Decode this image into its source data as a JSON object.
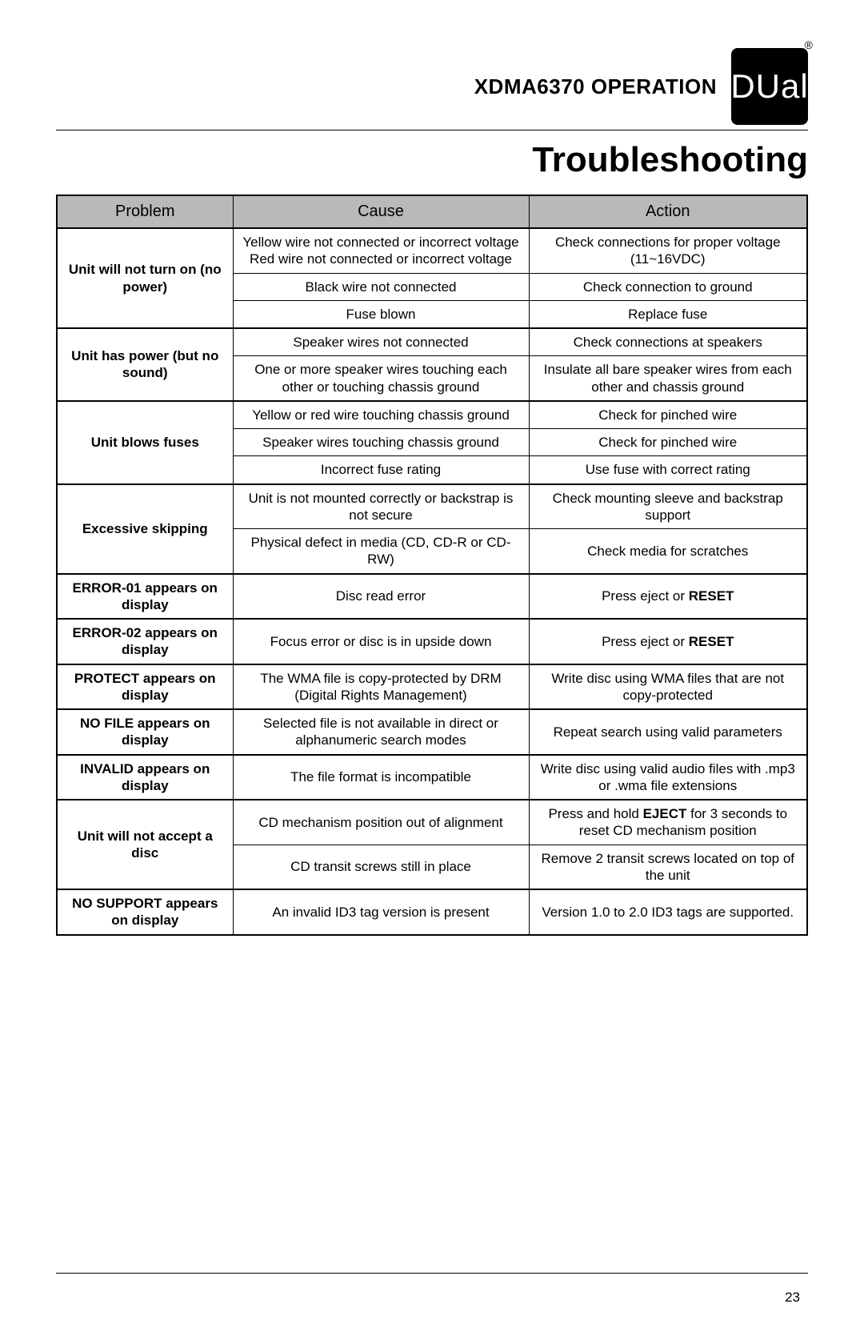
{
  "header": {
    "model": "XDMA6370",
    "operation": "OPERATION",
    "logo_text": "DUal",
    "reg": "®"
  },
  "title": "Troubleshooting",
  "columns": [
    "Problem",
    "Cause",
    "Action"
  ],
  "groups": [
    {
      "problem": "Unit will not turn on (no power)",
      "rows": [
        {
          "cause": "Yellow wire not connected or incorrect voltage Red wire not connected or incorrect voltage",
          "action": "Check connections for proper voltage (11~16VDC)"
        },
        {
          "cause": "Black wire not connected",
          "action": "Check connection to ground"
        },
        {
          "cause": "Fuse blown",
          "action": "Replace fuse"
        }
      ]
    },
    {
      "problem": "Unit has power (but no sound)",
      "rows": [
        {
          "cause": "Speaker wires not connected",
          "action": "Check connections at speakers"
        },
        {
          "cause": "One or more speaker wires touching each other or touching chassis ground",
          "action": "Insulate all bare speaker wires from each other and chassis ground"
        }
      ]
    },
    {
      "problem": "Unit blows fuses",
      "rows": [
        {
          "cause": "Yellow or red wire touching chassis ground",
          "action": "Check for pinched wire"
        },
        {
          "cause": "Speaker wires touching chassis ground",
          "action": "Check for pinched wire"
        },
        {
          "cause": "Incorrect fuse rating",
          "action": "Use fuse with correct rating"
        }
      ]
    },
    {
      "problem": "Excessive skipping",
      "rows": [
        {
          "cause": "Unit is not mounted correctly or backstrap is not secure",
          "action": "Check mounting sleeve and backstrap support"
        },
        {
          "cause": "Physical defect in media (CD, CD-R or CD-RW)",
          "action": "Check media for scratches"
        }
      ]
    },
    {
      "problem": "ERROR-01 appears on display",
      "rows": [
        {
          "cause": "Disc read error",
          "action_pre": "Press eject or ",
          "action_bold": "RESET",
          "action_post": ""
        }
      ]
    },
    {
      "problem": "ERROR-02 appears on display",
      "rows": [
        {
          "cause": "Focus error or disc is in upside down",
          "action_pre": "Press eject or ",
          "action_bold": "RESET",
          "action_post": ""
        }
      ]
    },
    {
      "problem": "PROTECT appears on display",
      "rows": [
        {
          "cause": "The WMA file is copy-protected by DRM (Digital Rights Management)",
          "action": "Write disc using WMA files that are not copy-protected"
        }
      ]
    },
    {
      "problem": "NO FILE appears on display",
      "rows": [
        {
          "cause": "Selected file is not available in direct or alphanumeric search modes",
          "action": "Repeat search using valid parameters"
        }
      ]
    },
    {
      "problem": "INVALID appears on display",
      "rows": [
        {
          "cause": "The file format is incompatible",
          "action": "Write disc using valid audio files with .mp3 or .wma file extensions"
        }
      ]
    },
    {
      "problem": "Unit will not accept a disc",
      "rows": [
        {
          "cause": "CD mechanism position out of alignment",
          "action_pre": "Press and hold ",
          "action_bold": "EJECT",
          "action_post": " for 3 seconds to reset CD mechanism position"
        },
        {
          "cause": "CD transit screws still in place",
          "action": "Remove 2 transit screws located on top of the unit"
        }
      ]
    },
    {
      "problem": "NO SUPPORT appears on display",
      "rows": [
        {
          "cause": "An invalid ID3 tag version is present",
          "action": "Version 1.0 to 2.0 ID3 tags are supported."
        }
      ]
    }
  ],
  "page_number": "23"
}
